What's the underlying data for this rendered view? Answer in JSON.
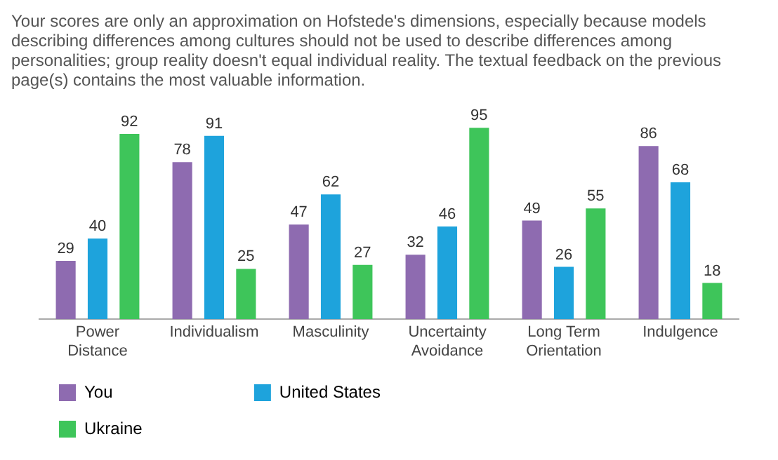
{
  "chart_data": {
    "type": "bar",
    "title": "Your scores are only an approximation on Hofstede's dimensions, especially because models describing differences among cultures should not be used to describe differences among personalities; group reality doesn't equal individual reality. The textual feedback on the previous page(s) contains the most valuable information.",
    "categories": [
      "Power\nDistance",
      "Individualism",
      "Masculinity",
      "Uncertainty\nAvoidance",
      "Long Term\nOrientation",
      "Indulgence"
    ],
    "series": [
      {
        "name": "You",
        "color": "#8e6bb0",
        "values": [
          29,
          78,
          47,
          32,
          49,
          86
        ]
      },
      {
        "name": "United States",
        "color": "#1ea3dc",
        "values": [
          40,
          91,
          62,
          46,
          26,
          68
        ]
      },
      {
        "name": "Ukraine",
        "color": "#3ec55a",
        "values": [
          92,
          25,
          27,
          95,
          55,
          18
        ]
      }
    ],
    "data_labels": true,
    "grid": false,
    "legend": "bottom"
  }
}
